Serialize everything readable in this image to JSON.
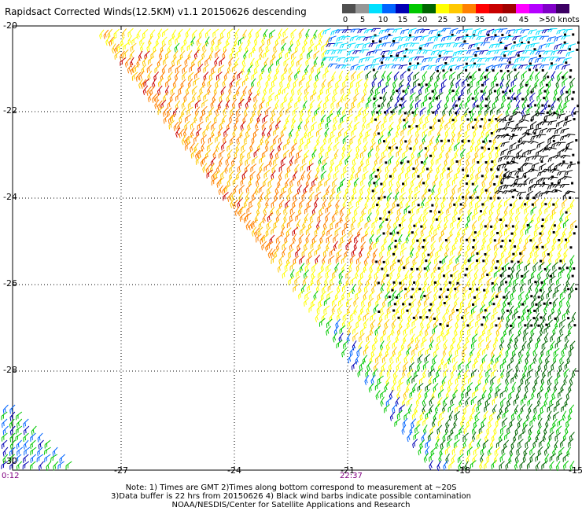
{
  "title": "Rapidsact Corrected Winds(12.5KM) v1.1 20150626 descending",
  "colorbar": {
    "colors": [
      "#505050",
      "#969696",
      "#00e0ff",
      "#0064ff",
      "#0000b4",
      "#00c800",
      "#006400",
      "#ffff00",
      "#ffc800",
      "#ff8000",
      "#ff0000",
      "#c80000",
      "#a00000",
      "#ff00ff",
      "#b400ff",
      "#8000c8",
      "#3c0064"
    ],
    "labels": [
      "0",
      "5",
      "10",
      "15",
      "20",
      "25",
      "30",
      "35",
      "40",
      "45",
      ">50 knots"
    ]
  },
  "axes": {
    "lat_labels": [
      "-20",
      "-22",
      "-24",
      "-26",
      "-28",
      "-30"
    ],
    "lon_labels": [
      "-27",
      "-24",
      "-21",
      "-18",
      "-15"
    ]
  },
  "times": {
    "left": "0:12",
    "center": "22:37"
  },
  "notes": [
    "Note: 1) Times are GMT 2)Times along bottom correspond to measurement at ~20S",
    "3)Data buffer is 22 hrs from 20150626 4) Black wind barbs indicate possible contamination",
    "NOAA/NESDIS/Center for Satellite Applications and Research"
  ]
}
